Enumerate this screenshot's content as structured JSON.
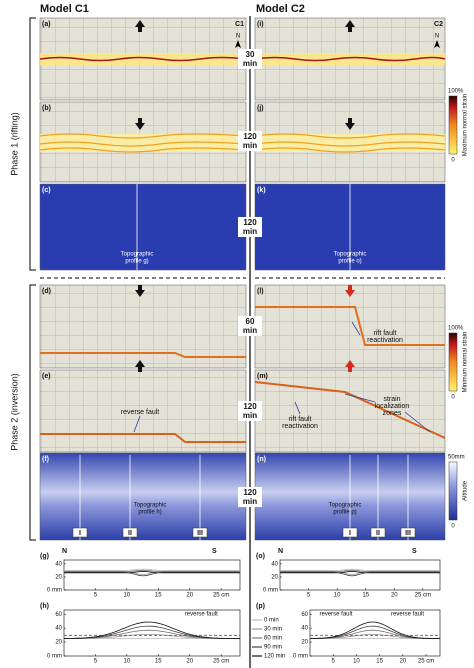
{
  "columns": [
    "Model C1",
    "Model C2"
  ],
  "model_tags": [
    "C1",
    "C2"
  ],
  "north": "N",
  "phases": [
    "Phase 1 (rifting)",
    "Phase 2 (inversion)"
  ],
  "panel_labels": {
    "left": [
      "(a)",
      "(b)",
      "(c)",
      "(d)",
      "(e)",
      "(f)"
    ],
    "right": [
      "(i)",
      "(j)",
      "(k)",
      "(l)",
      "(m)",
      "(n)"
    ]
  },
  "times": [
    [
      "30",
      "min"
    ],
    [
      "120",
      "min"
    ],
    [
      "120",
      "min"
    ],
    [
      "60",
      "min"
    ],
    [
      "120",
      "min"
    ],
    [
      "120",
      "min"
    ]
  ],
  "colorbars": [
    {
      "top": "100%",
      "title": "Maximum normal strain",
      "bottom": "0"
    },
    {
      "top": "100%",
      "title": "Minimum normal strain",
      "bottom": "0"
    },
    {
      "top": "50mm",
      "title": "Altitude",
      "bottom": "0"
    }
  ],
  "annotations": {
    "profile_c": [
      "Topographic",
      "profile g)"
    ],
    "profile_k": [
      "Topographic",
      "profile o)"
    ],
    "profile_f": [
      "Topographic",
      "profile h)"
    ],
    "profile_n": [
      "Topographic",
      "profile p)"
    ],
    "reverse_fault_e": "reverse fault",
    "rift_reactivation_l": [
      "rift fault",
      "reactivation"
    ],
    "strain_zones_m": [
      "strain",
      "localization",
      "zones"
    ],
    "rift_reactivation_m": [
      "rift fault",
      "reactivation"
    ]
  },
  "sections": {
    "left": [
      "I",
      "II",
      "III"
    ],
    "right": [
      "I",
      "II",
      "III"
    ]
  },
  "profiles": {
    "g": {
      "label": "(g)",
      "ends": [
        "N",
        "S"
      ],
      "yticks": [
        "0 mm",
        "20",
        "40"
      ],
      "xticks": [
        "5",
        "10",
        "15",
        "20",
        "25 cm"
      ]
    },
    "h": {
      "label": "(h)",
      "yticks": [
        "0 mm",
        "20",
        "40",
        "60"
      ],
      "xticks": [
        "5",
        "10",
        "15",
        "20",
        "25 cm"
      ],
      "notes": [
        "reverse fault"
      ]
    },
    "o": {
      "label": "(o)",
      "ends": [
        "N",
        "S"
      ],
      "yticks": [
        "0 mm",
        "20",
        "40"
      ],
      "xticks": [
        "5",
        "10",
        "15",
        "20",
        "25 cm"
      ]
    },
    "p": {
      "label": "(p)",
      "yticks": [
        "0 mm",
        "20",
        "40",
        "60"
      ],
      "xticks": [
        "5",
        "10",
        "15",
        "20",
        "25 cm"
      ],
      "notes": [
        "reverse fault",
        "reverse fault"
      ]
    }
  },
  "legend": [
    "0 min",
    "30 min",
    "60 min",
    "90 min",
    "120 min"
  ]
}
